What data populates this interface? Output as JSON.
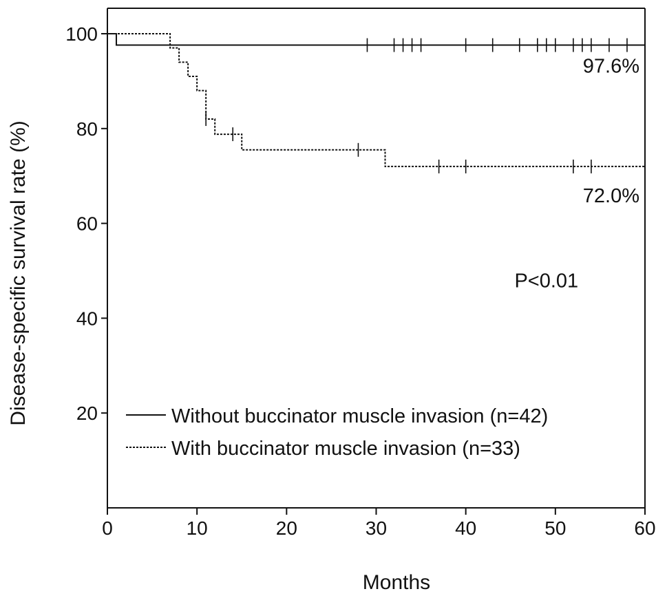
{
  "chart_data": {
    "type": "line",
    "subtype": "kaplan-meier",
    "xlabel": "Months",
    "ylabel": "Disease-specific survival rate (%)",
    "xlim": [
      0,
      60
    ],
    "ylim": [
      0,
      100
    ],
    "xticks": [
      0,
      10,
      20,
      30,
      40,
      50,
      60
    ],
    "yticks": [
      20,
      40,
      60,
      80,
      100
    ],
    "grid": false,
    "legend_position": "bottom-left",
    "series": [
      {
        "name": "Without buccinator muscle invasion (n=42)",
        "line_style": "solid",
        "color": "#111111",
        "steps": [
          [
            0,
            100
          ],
          [
            1,
            97.6
          ],
          [
            60,
            97.6
          ]
        ],
        "censored_x": [
          29,
          32,
          33,
          34,
          35,
          40,
          43,
          46,
          48,
          49,
          50,
          52,
          53,
          54,
          56,
          58
        ],
        "end_label": "97.6%"
      },
      {
        "name": "With buccinator muscle invasion (n=33)",
        "line_style": "dotted",
        "color": "#111111",
        "steps": [
          [
            0,
            100
          ],
          [
            7,
            97
          ],
          [
            8,
            94
          ],
          [
            9,
            91
          ],
          [
            10,
            88
          ],
          [
            11,
            82
          ],
          [
            12,
            78.8
          ],
          [
            15,
            75.5
          ],
          [
            31,
            72
          ],
          [
            60,
            72
          ]
        ],
        "censored_x": [
          11,
          14,
          28,
          37,
          40,
          52,
          54
        ],
        "end_label": "72.0%"
      }
    ],
    "annotations": [
      {
        "text": "P<0.01",
        "x": 49,
        "y": 48
      }
    ]
  }
}
